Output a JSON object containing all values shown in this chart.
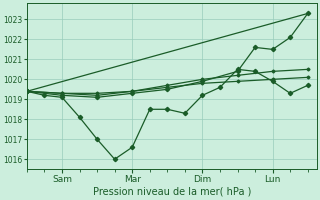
{
  "bg_color": "#cceedd",
  "grid_color": "#99ccbb",
  "line_color": "#1a5c28",
  "marker_color": "#1a5c28",
  "xlabel": "Pression niveau de la mer( hPa )",
  "ylim": [
    1015.5,
    1023.8
  ],
  "yticks": [
    1016,
    1017,
    1018,
    1019,
    1020,
    1021,
    1022,
    1023
  ],
  "xtick_labels": [
    "Sam",
    "Mar",
    "Dim",
    "Lun"
  ],
  "xtick_positions": [
    16,
    48,
    80,
    112
  ],
  "xlim": [
    0,
    132
  ],
  "series1_x": [
    0,
    8,
    16,
    24,
    32,
    40,
    48,
    56,
    64,
    72,
    80,
    88,
    96,
    104,
    112,
    120,
    128
  ],
  "series1_y": [
    1019.4,
    1019.2,
    1019.1,
    1018.1,
    1017.0,
    1016.0,
    1016.6,
    1018.5,
    1018.5,
    1018.3,
    1019.2,
    1019.6,
    1020.5,
    1020.4,
    1019.9,
    1019.3,
    1019.7
  ],
  "series2_x": [
    0,
    16,
    32,
    48,
    64,
    80,
    96,
    112,
    128
  ],
  "series2_y": [
    1019.4,
    1019.3,
    1019.3,
    1019.4,
    1019.6,
    1019.8,
    1019.9,
    1020.0,
    1020.1
  ],
  "series3_x": [
    0,
    16,
    32,
    48,
    64,
    80,
    96,
    112,
    128
  ],
  "series3_y": [
    1019.4,
    1019.3,
    1019.2,
    1019.4,
    1019.7,
    1020.0,
    1020.2,
    1020.4,
    1020.5
  ],
  "series4_x": [
    0,
    128
  ],
  "series4_y": [
    1019.4,
    1023.3
  ],
  "series5_x": [
    0,
    16,
    32,
    48,
    64,
    80,
    96,
    104,
    112,
    120,
    128
  ],
  "series5_y": [
    1019.4,
    1019.2,
    1019.1,
    1019.3,
    1019.5,
    1019.9,
    1020.4,
    1021.6,
    1021.5,
    1022.1,
    1023.3
  ]
}
